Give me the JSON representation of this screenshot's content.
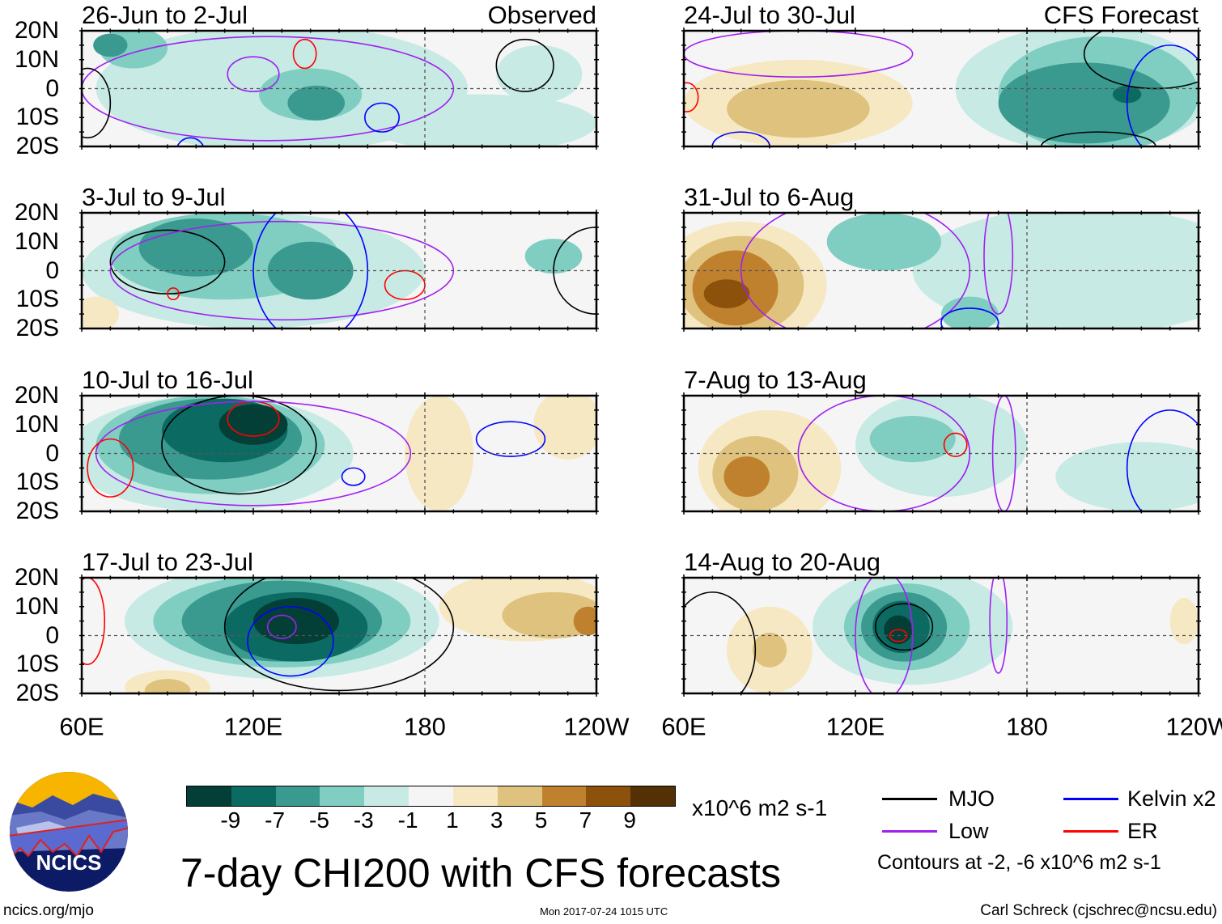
{
  "panels": [
    {
      "title": "26-Jun to 2-Jul",
      "tag": "Observed"
    },
    {
      "title": "24-Jul to 30-Jul",
      "tag": "CFS Forecast"
    },
    {
      "title": "3-Jul to 9-Jul",
      "tag": ""
    },
    {
      "title": "31-Jul to 6-Aug",
      "tag": ""
    },
    {
      "title": "10-Jul to 16-Jul",
      "tag": ""
    },
    {
      "title": "7-Aug to 13-Aug",
      "tag": ""
    },
    {
      "title": "17-Jul to 23-Jul",
      "tag": ""
    },
    {
      "title": "14-Aug to 20-Aug",
      "tag": ""
    }
  ],
  "lat_labels": [
    "20N",
    "10N",
    "0",
    "10S",
    "20S"
  ],
  "lon_labels": [
    "60E",
    "120E",
    "180",
    "120W"
  ],
  "colorbar": {
    "colors": [
      "#033f36",
      "#0b6b63",
      "#3a9a90",
      "#80cdc1",
      "#c7eae5",
      "#f5f5f5",
      "#f6e8c3",
      "#dfc27d",
      "#bf812d",
      "#8c510a",
      "#543005"
    ],
    "labels": [
      "-9",
      "-7",
      "-5",
      "-3",
      "-1",
      "1",
      "3",
      "5",
      "7",
      "9"
    ],
    "units": "x10^6 m2 s-1"
  },
  "legend": {
    "items": [
      {
        "label": "MJO",
        "color": "#000000"
      },
      {
        "label": "Kelvin x2",
        "color": "#0000ff"
      },
      {
        "label": "Low",
        "color": "#a020f0"
      },
      {
        "label": "ER",
        "color": "#ff0000"
      }
    ],
    "note": "Contours at -2, -6 x10^6 m2 s-1"
  },
  "title": "7-day CHI200 with CFS forecasts",
  "logo_text": "NCICS",
  "footer": {
    "url": "ncics.org/mjo",
    "timestamp": "Mon 2017-07-24 1015 UTC",
    "author": "Carl Schreck (cjschrec@ncsu.edu)"
  }
}
